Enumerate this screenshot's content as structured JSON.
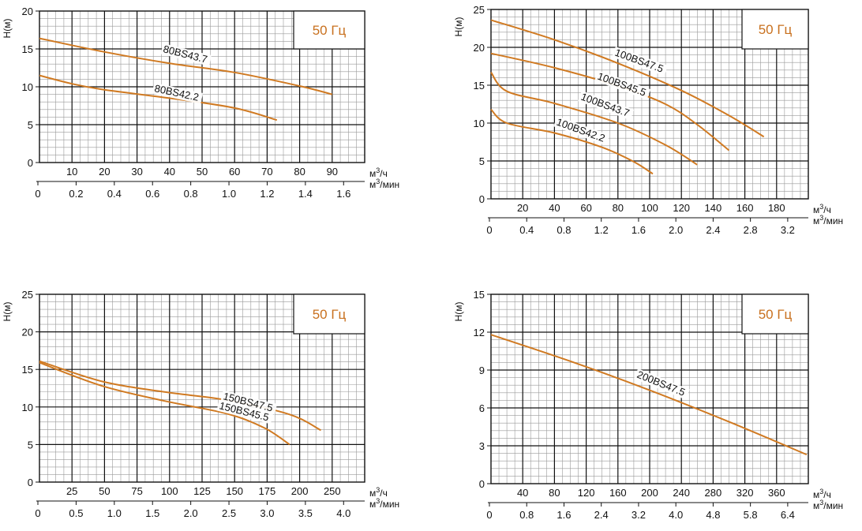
{
  "colors": {
    "curve": "#d07a22",
    "grid_major": "#111111",
    "grid_minor": "#9a9a9a",
    "frequency_text": "#c8701e"
  },
  "chart_data": [
    {
      "type": "line",
      "frequency_label": "50 Гц",
      "ylabel": "H(м)",
      "ylim": [
        0,
        20
      ],
      "y_ticks": [
        "0",
        "5",
        "10",
        "15",
        "20"
      ],
      "xlim": [
        0,
        100
      ],
      "x_ticks": [
        "10",
        "20",
        "30",
        "40",
        "50",
        "60",
        "70",
        "80",
        "90"
      ],
      "x_unit": "м³/ч",
      "x2_ticks": [
        "0",
        "0.2",
        "0.4",
        "0.6",
        "0.8",
        "1.0",
        "1.2",
        "1.4",
        "1.6"
      ],
      "x2_unit": "м³/мин",
      "grid": true,
      "series": [
        {
          "name": "80BS43.7",
          "x": [
            0,
            20,
            40,
            60,
            80,
            90
          ],
          "y": [
            16.4,
            14.6,
            13.1,
            11.9,
            10.1,
            9.0
          ]
        },
        {
          "name": "80BS42.2",
          "x": [
            0,
            10,
            20,
            40,
            60,
            73
          ],
          "y": [
            11.5,
            10.4,
            9.6,
            8.5,
            7.2,
            5.6
          ]
        }
      ]
    },
    {
      "type": "line",
      "frequency_label": "50 Гц",
      "ylabel": "H(м)",
      "ylim": [
        0,
        25
      ],
      "y_ticks": [
        "0",
        "5",
        "10",
        "15",
        "20",
        "25"
      ],
      "xlim": [
        0,
        200
      ],
      "x_ticks": [
        "20",
        "40",
        "60",
        "80",
        "100",
        "120",
        "140",
        "160",
        "180"
      ],
      "x_unit": "м³/ч",
      "x2_ticks": [
        "0",
        "0.4",
        "0.8",
        "1.2",
        "1.6",
        "2.0",
        "2.4",
        "2.8",
        "3.2"
      ],
      "x2_unit": "м³/мин",
      "grid": true,
      "series": [
        {
          "name": "100BS47.5",
          "x": [
            0,
            40,
            80,
            120,
            150,
            172
          ],
          "y": [
            23.6,
            21.0,
            17.9,
            14.3,
            11.0,
            8.2
          ]
        },
        {
          "name": "100BS45.5",
          "x": [
            0,
            40,
            80,
            110,
            130,
            150
          ],
          "y": [
            19.2,
            17.3,
            14.9,
            12.5,
            9.8,
            6.4
          ]
        },
        {
          "name": "100BS43.7",
          "x": [
            0,
            10,
            40,
            80,
            110,
            130
          ],
          "y": [
            16.7,
            14.2,
            12.6,
            10.0,
            7.1,
            4.5
          ]
        },
        {
          "name": "100BS42.2",
          "x": [
            0,
            10,
            40,
            70,
            90,
            102
          ],
          "y": [
            11.8,
            10.0,
            8.7,
            6.8,
            4.9,
            3.3
          ]
        }
      ]
    },
    {
      "type": "line",
      "frequency_label": "50 Гц",
      "ylabel": "H(м)",
      "ylim": [
        0,
        25
      ],
      "y_ticks": [
        "0",
        "5",
        "10",
        "15",
        "20",
        "25"
      ],
      "xlim": [
        0,
        260
      ],
      "x_ticks": [
        "25",
        "50",
        "75",
        "100",
        "125",
        "150",
        "175",
        "200",
        "250"
      ],
      "x_unit": "м³/ч",
      "x2_ticks": [
        "0",
        "0.5",
        "1.0",
        "1.5",
        "2.0",
        "2.5",
        "3.0",
        "3.5",
        "4.0"
      ],
      "x2_unit": "м³/мин",
      "grid": true,
      "series": [
        {
          "name": "150BS47.5",
          "x": [
            0,
            50,
            100,
            150,
            200,
            225
          ],
          "y": [
            16.1,
            13.4,
            12.0,
            10.9,
            9.0,
            6.9
          ]
        },
        {
          "name": "150BS45.5",
          "x": [
            0,
            50,
            100,
            150,
            180,
            200
          ],
          "y": [
            15.9,
            12.8,
            10.8,
            9.1,
            7.2,
            5.0
          ]
        }
      ]
    },
    {
      "type": "line",
      "frequency_label": "50 Гц",
      "ylabel": "H(м)",
      "ylim": [
        0,
        15
      ],
      "y_ticks": [
        "0",
        "3",
        "6",
        "9",
        "12",
        "15"
      ],
      "xlim": [
        0,
        400
      ],
      "x_ticks": [
        "40",
        "80",
        "120",
        "160",
        "200",
        "240",
        "280",
        "320",
        "360"
      ],
      "x_unit": "м³/ч",
      "x2_ticks": [
        "0",
        "0.8",
        "1.6",
        "2.4",
        "3.2",
        "4.0",
        "4.8",
        "5.8",
        "6.4"
      ],
      "x2_unit": "м³/мин",
      "grid": true,
      "series": [
        {
          "name": "200BS47.5",
          "x": [
            0,
            100,
            200,
            300,
            398
          ],
          "y": [
            11.8,
            9.7,
            7.4,
            4.9,
            2.3
          ]
        }
      ]
    }
  ]
}
